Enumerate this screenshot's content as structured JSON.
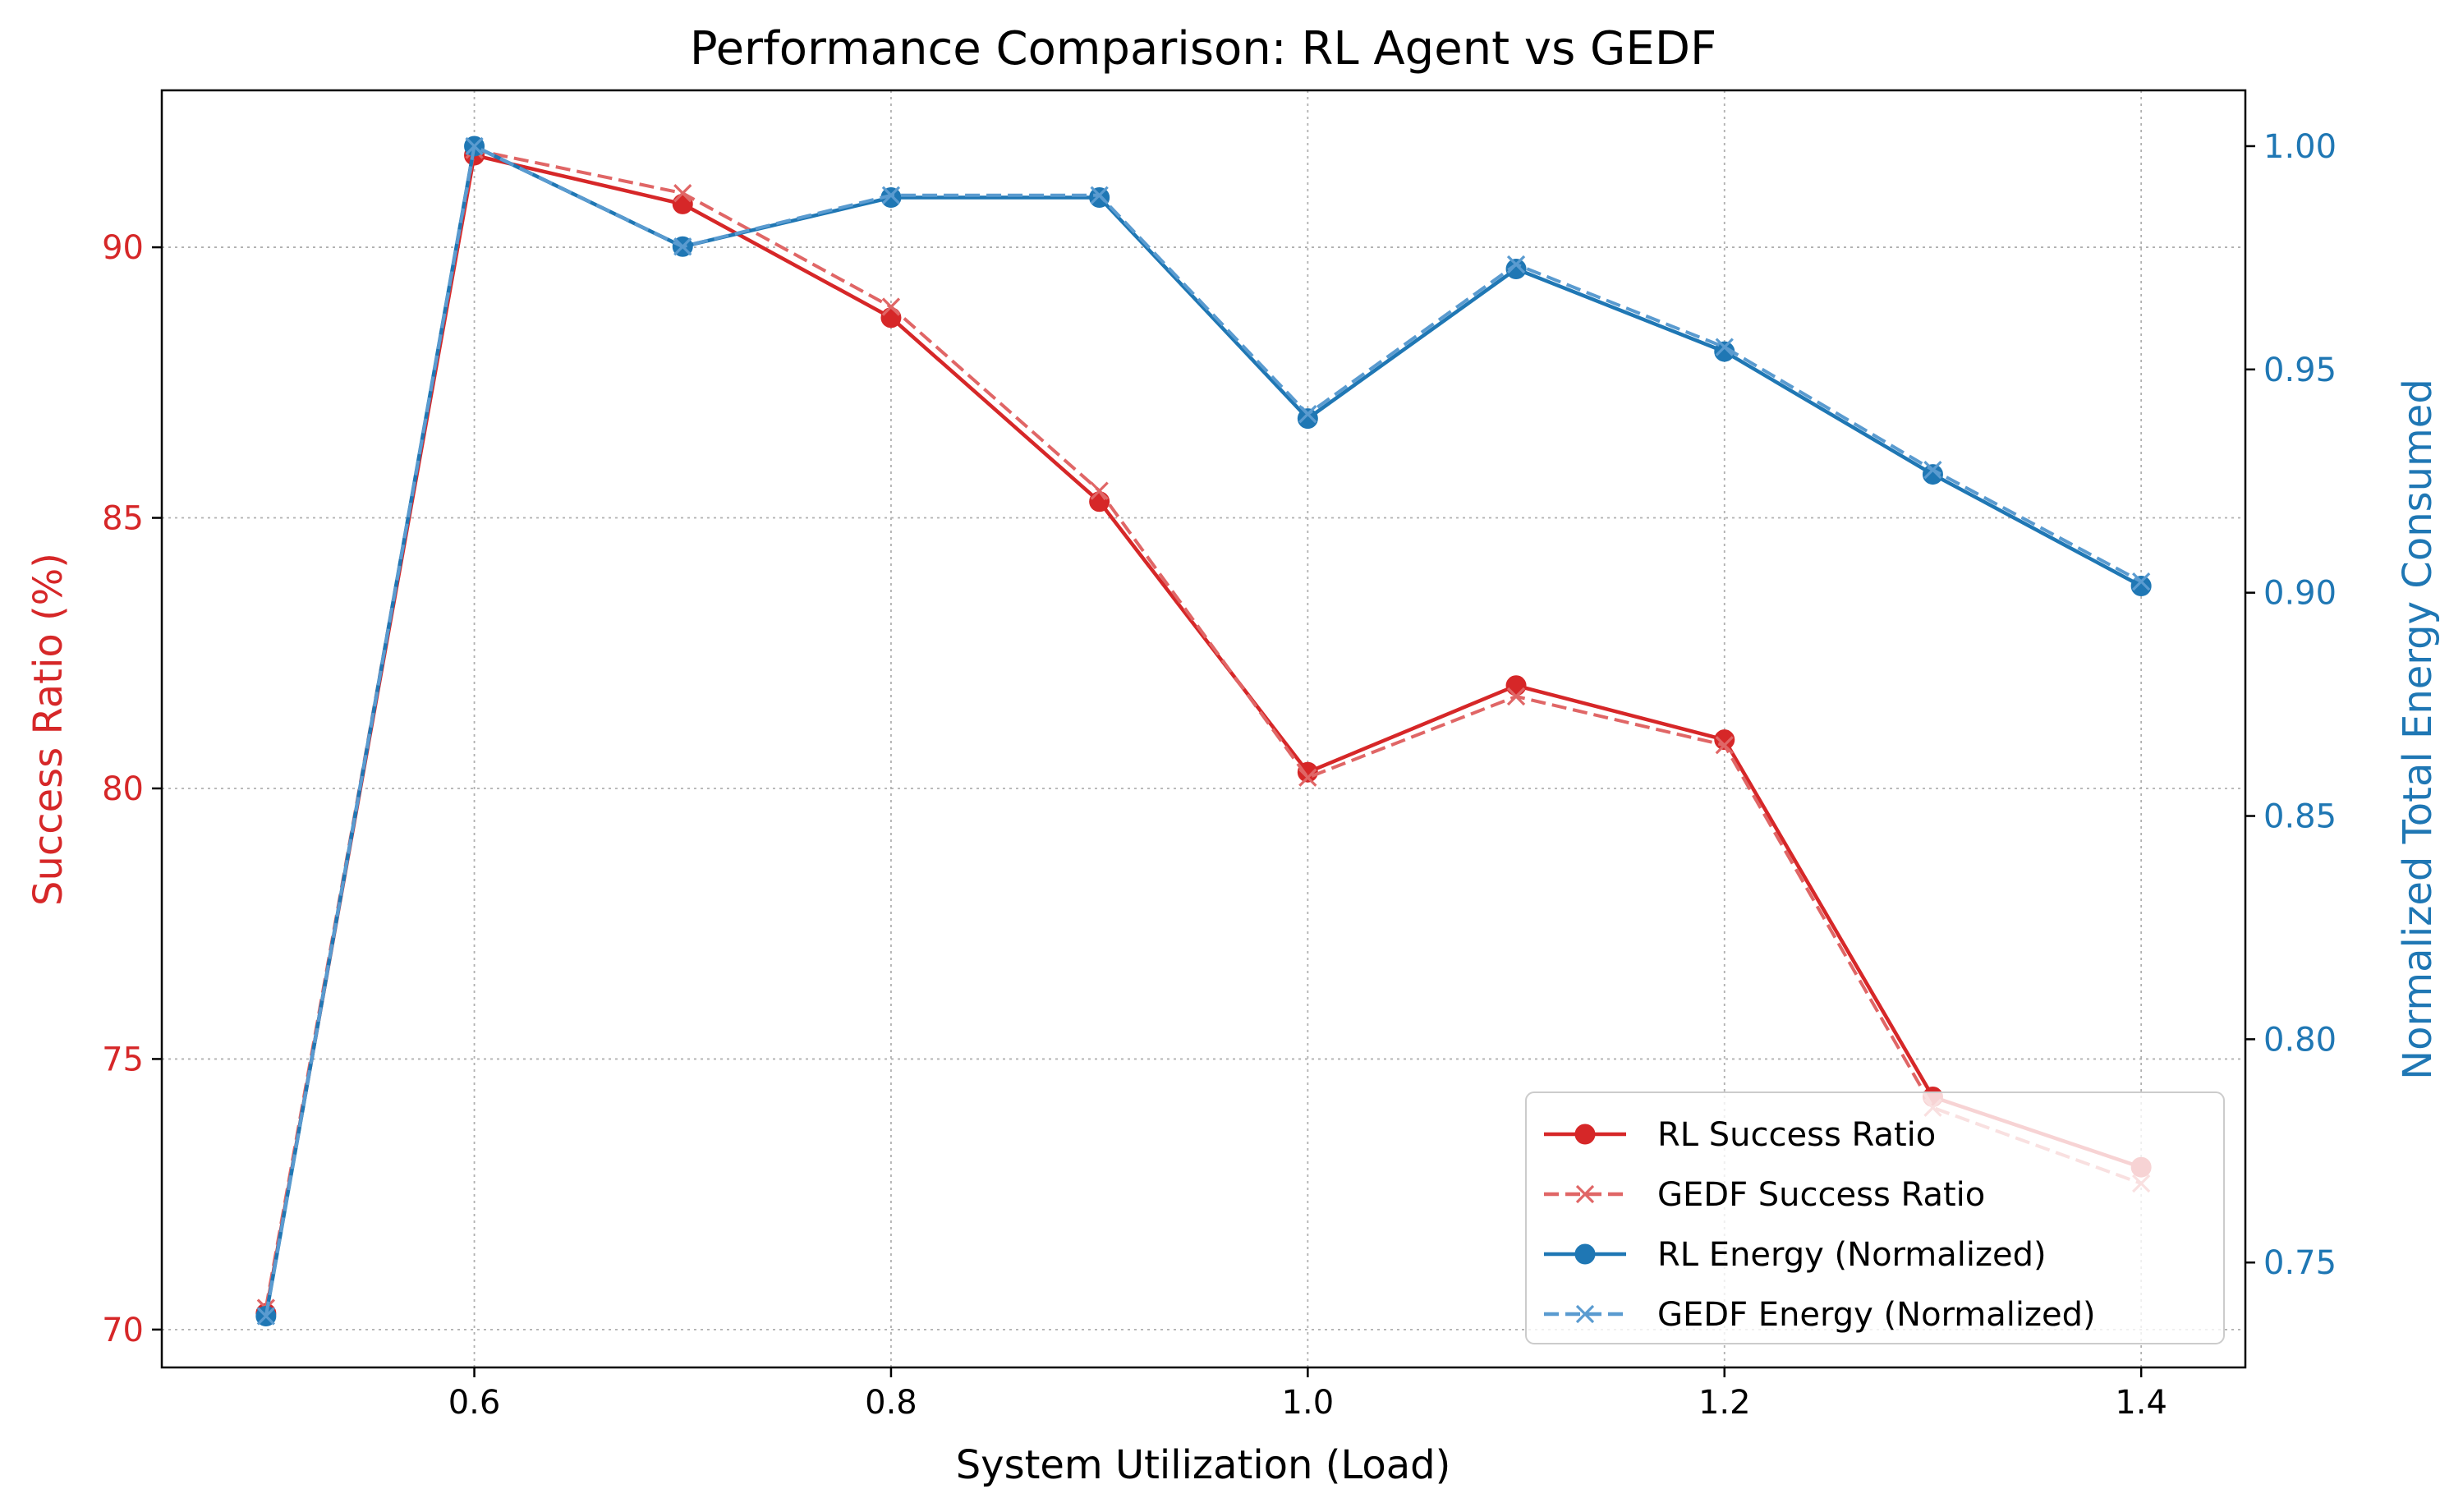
{
  "chart_data": {
    "type": "line",
    "title": "Performance Comparison: RL Agent vs GEDF",
    "xlabel": "System Utilization (Load)",
    "ylabel_left": "Success Ratio (%)",
    "ylabel_right": "Normalized Total Energy Consumed",
    "xlim": [
      0.45,
      1.45
    ],
    "ylim_left": [
      69.3,
      92.9
    ],
    "ylim_right": [
      0.7265,
      1.0125
    ],
    "x": [
      0.5,
      0.6,
      0.7,
      0.8,
      0.9,
      1.0,
      1.1,
      1.2,
      1.3,
      1.4
    ],
    "x_ticks": [
      "0.6",
      "0.8",
      "1.0",
      "1.2",
      "1.4"
    ],
    "y_ticks_left": [
      "70",
      "75",
      "80",
      "85",
      "90"
    ],
    "y_ticks_right": [
      "0.75",
      "0.80",
      "0.85",
      "0.90",
      "0.95",
      "1.00"
    ],
    "grid": true,
    "legend_position": "bottom-right",
    "colors": {
      "left_axis": "#d62728",
      "right_axis": "#1f77b4",
      "rl_success": "#d62728",
      "gedf_success": "#e06666",
      "rl_energy": "#1f77b4",
      "gedf_energy": "#5a9bd0"
    },
    "series": [
      {
        "name": "RL Success Ratio",
        "axis": "left",
        "values": [
          70.3,
          91.7,
          90.8,
          88.7,
          85.3,
          80.3,
          81.9,
          80.9,
          74.3,
          73.0
        ],
        "marker": "circle",
        "style": "solid",
        "color": "#d62728"
      },
      {
        "name": "GEDF Success Ratio",
        "axis": "left",
        "values": [
          70.4,
          91.8,
          91.0,
          88.9,
          85.5,
          80.2,
          81.7,
          80.8,
          74.1,
          72.7
        ],
        "marker": "x",
        "style": "dashed",
        "color": "#e06666"
      },
      {
        "name": "RL Energy (Normalized)",
        "axis": "right",
        "values": [
          0.738,
          1.0,
          0.9775,
          0.9885,
          0.9885,
          0.939,
          0.9725,
          0.954,
          0.9265,
          0.9015
        ],
        "marker": "circle",
        "style": "solid",
        "color": "#1f77b4"
      },
      {
        "name": "GEDF Energy (Normalized)",
        "axis": "right",
        "values": [
          0.738,
          1.0,
          0.9775,
          0.989,
          0.989,
          0.94,
          0.9735,
          0.955,
          0.9275,
          0.9025
        ],
        "marker": "x",
        "style": "dashed",
        "color": "#5a9bd0"
      }
    ]
  }
}
